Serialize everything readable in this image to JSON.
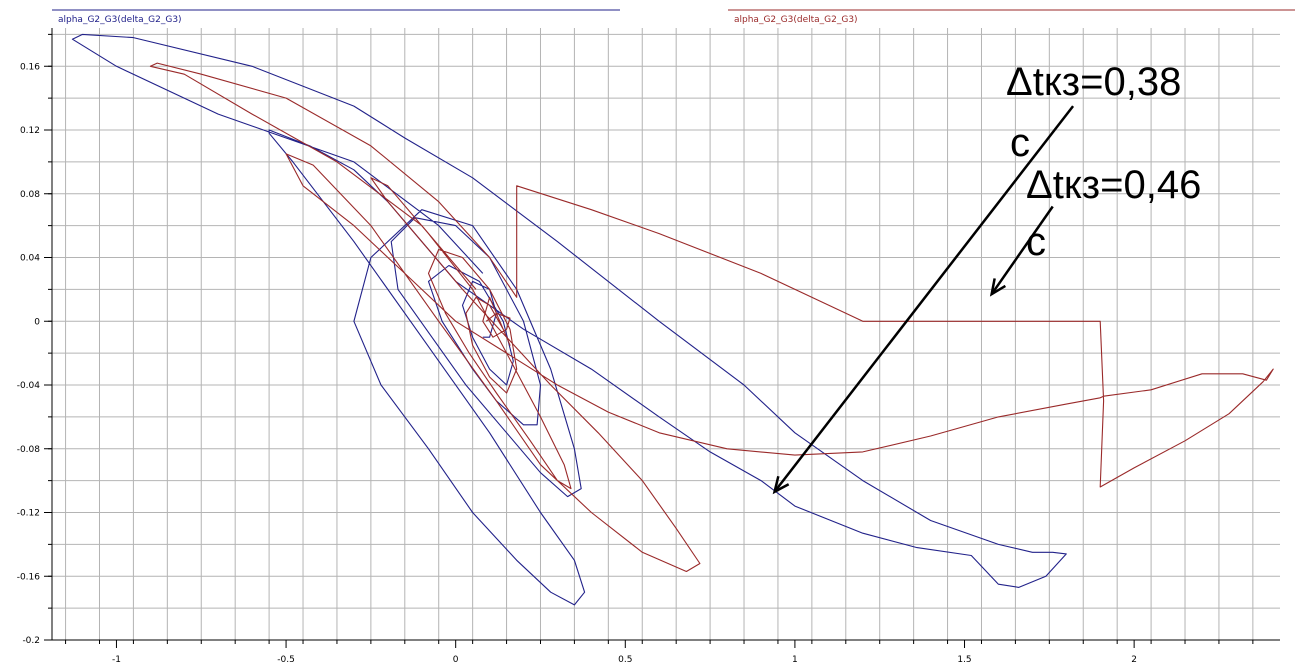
{
  "chart_data": {
    "type": "line",
    "legend": [
      {
        "label": "alpha_G2_G3(delta_G2_G3)",
        "color": "#22228a"
      },
      {
        "label": "alpha_G2_G3(delta_G2_G3)",
        "color": "#9a2a2a"
      }
    ],
    "x_ticks": [
      "-1",
      "-0.5",
      "0",
      "0.5",
      "1",
      "1.5",
      "2"
    ],
    "x_tick_values": [
      -1,
      -0.5,
      0,
      0.5,
      1,
      1.5,
      2
    ],
    "y_ticks": [
      "0.16",
      "0.12",
      "0.08",
      "0.04",
      "0",
      "-0.04",
      "-0.08",
      "-0.12",
      "-0.16",
      "-0.2"
    ],
    "y_tick_values": [
      0.16,
      0.12,
      0.08,
      0.04,
      0,
      -0.04,
      -0.08,
      -0.12,
      -0.16,
      -0.2
    ],
    "xlim": [
      -1.19,
      2.43
    ],
    "ylim": [
      -0.2,
      0.184
    ],
    "grid": true,
    "series": [
      {
        "color": "#22228a",
        "x": [
          0.08,
          -0.05,
          -0.3,
          -0.7,
          -1.0,
          -1.13,
          -1.1,
          -0.95,
          -0.6,
          -0.3,
          -0.15,
          0.05,
          0.3,
          0.6,
          0.85,
          1.0,
          1.2,
          1.4,
          1.6,
          1.7,
          1.76,
          1.8,
          1.74,
          1.66,
          1.6,
          1.52,
          1.36,
          1.2,
          1.0,
          0.9,
          0.75,
          0.6,
          0.4,
          0.2,
          0.0,
          -0.1,
          -0.2,
          -0.3,
          -0.43,
          -0.55,
          -0.55,
          -0.48,
          -0.3,
          -0.1,
          0.1,
          0.25,
          0.35,
          0.38,
          0.35,
          0.28,
          0.18,
          0.05,
          -0.08,
          -0.22,
          -0.3,
          -0.25,
          -0.1,
          0.05,
          0.18,
          0.28,
          0.35,
          0.37,
          0.33,
          0.25,
          0.15,
          0.03,
          -0.07,
          -0.17,
          -0.19,
          -0.12,
          0.0,
          0.1,
          0.2,
          0.25,
          0.24,
          0.2,
          0.12,
          0.05,
          -0.04,
          -0.08,
          -0.02,
          0.07,
          0.14,
          0.17,
          0.15,
          0.1,
          0.05,
          0.02,
          0.05,
          0.1,
          0.12,
          0.1,
          0.08
        ],
        "y": [
          0.03,
          0.06,
          0.1,
          0.13,
          0.16,
          0.177,
          0.18,
          0.178,
          0.16,
          0.135,
          0.115,
          0.09,
          0.05,
          0.0,
          -0.04,
          -0.07,
          -0.1,
          -0.125,
          -0.14,
          -0.145,
          -0.145,
          -0.146,
          -0.16,
          -0.167,
          -0.165,
          -0.147,
          -0.142,
          -0.133,
          -0.116,
          -0.1,
          -0.082,
          -0.06,
          -0.03,
          -0.005,
          0.025,
          0.05,
          0.075,
          0.095,
          0.11,
          0.12,
          0.118,
          0.1,
          0.05,
          -0.01,
          -0.07,
          -0.12,
          -0.15,
          -0.17,
          -0.178,
          -0.17,
          -0.15,
          -0.12,
          -0.08,
          -0.04,
          0.0,
          0.04,
          0.07,
          0.06,
          0.02,
          -0.03,
          -0.08,
          -0.105,
          -0.11,
          -0.095,
          -0.07,
          -0.04,
          -0.01,
          0.02,
          0.05,
          0.065,
          0.06,
          0.04,
          0.0,
          -0.04,
          -0.065,
          -0.065,
          -0.05,
          -0.03,
          0.0,
          0.025,
          0.035,
          0.025,
          0.0,
          -0.025,
          -0.04,
          -0.03,
          -0.01,
          0.01,
          0.025,
          0.02,
          0.005,
          -0.01,
          -0.01
        ]
      },
      {
        "color": "#9a2a2a",
        "x": [
          0.06,
          -0.1,
          -0.35,
          -0.6,
          -0.8,
          -0.9,
          -0.88,
          -0.75,
          -0.5,
          -0.25,
          -0.05,
          0.1,
          0.18,
          0.18,
          0.4,
          0.6,
          0.9,
          1.1,
          1.2,
          1.4,
          1.52,
          1.7,
          1.9,
          1.91,
          1.9,
          2.0,
          2.15,
          2.28,
          2.38,
          2.41,
          2.39,
          2.32,
          2.2,
          2.05,
          1.91,
          1.9,
          1.8,
          1.6,
          1.4,
          1.2,
          1.0,
          0.8,
          0.6,
          0.45,
          0.3,
          0.15,
          0.0,
          -0.15,
          -0.3,
          -0.45,
          -0.5,
          -0.42,
          -0.25,
          -0.05,
          0.12,
          0.25,
          0.4,
          0.55,
          0.68,
          0.72,
          0.65,
          0.55,
          0.42,
          0.28,
          0.15,
          0.02,
          -0.1,
          -0.2,
          -0.25,
          -0.2,
          -0.08,
          0.05,
          0.15,
          0.25,
          0.32,
          0.34,
          0.3,
          0.22,
          0.12,
          0.04,
          -0.03,
          -0.08,
          -0.05,
          0.02,
          0.1,
          0.16,
          0.18,
          0.15,
          0.1,
          0.05,
          0.03,
          0.06,
          0.1,
          0.14,
          0.16,
          0.15,
          0.12,
          0.1,
          0.08,
          0.11,
          0.15,
          0.16,
          0.12,
          0.09
        ],
        "y": [
          0.02,
          0.06,
          0.1,
          0.13,
          0.155,
          0.16,
          0.162,
          0.155,
          0.14,
          0.11,
          0.075,
          0.04,
          0.015,
          0.085,
          0.07,
          0.055,
          0.03,
          0.01,
          0.0,
          0.0,
          0.0,
          0.0,
          0.0,
          -0.05,
          -0.104,
          -0.092,
          -0.075,
          -0.058,
          -0.038,
          -0.03,
          -0.037,
          -0.033,
          -0.033,
          -0.043,
          -0.047,
          -0.048,
          -0.052,
          -0.06,
          -0.072,
          -0.082,
          -0.084,
          -0.08,
          -0.07,
          -0.057,
          -0.04,
          -0.02,
          0.0,
          0.03,
          0.06,
          0.085,
          0.105,
          0.098,
          0.06,
          0.0,
          -0.05,
          -0.09,
          -0.12,
          -0.145,
          -0.157,
          -0.152,
          -0.13,
          -0.1,
          -0.07,
          -0.04,
          -0.01,
          0.02,
          0.05,
          0.075,
          0.09,
          0.085,
          0.055,
          0.02,
          -0.02,
          -0.06,
          -0.09,
          -0.105,
          -0.1,
          -0.075,
          -0.045,
          -0.02,
          0.005,
          0.03,
          0.045,
          0.04,
          0.02,
          -0.005,
          -0.03,
          -0.045,
          -0.035,
          -0.015,
          0.005,
          0.015,
          0.01,
          -0.005,
          -0.015,
          -0.01,
          0.005,
          0.015,
          0.0,
          -0.01,
          -0.005,
          0.002,
          0.005,
          0.0
        ]
      }
    ],
    "annotations": [
      {
        "lines": [
          "Δtкз=0,38",
          "c"
        ],
        "arrow_from": [
          1.82,
          0.135
        ],
        "arrow_to": [
          0.94,
          -0.107
        ]
      },
      {
        "lines": [
          "Δtкз=0,46",
          "c"
        ],
        "arrow_from": [
          1.76,
          0.072
        ],
        "arrow_to": [
          1.58,
          0.017
        ]
      }
    ]
  }
}
